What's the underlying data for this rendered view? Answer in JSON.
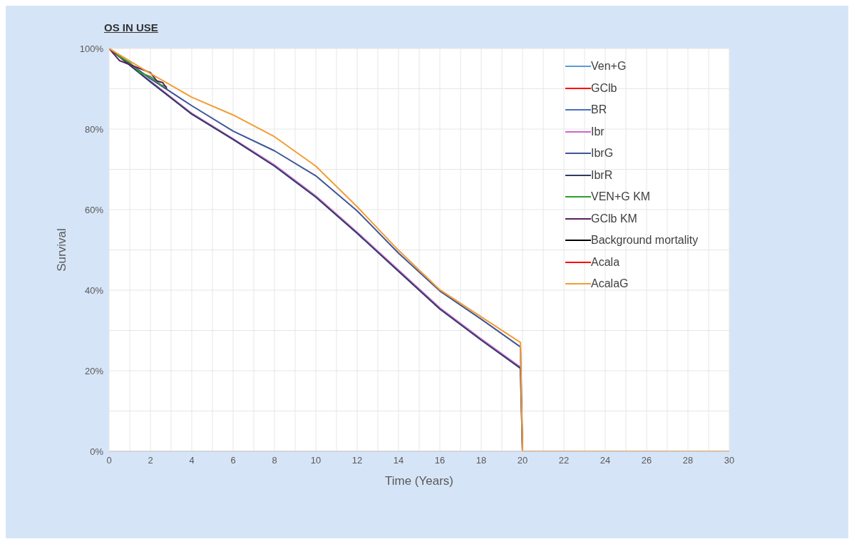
{
  "chart_data": {
    "type": "line",
    "title": "OS IN USE",
    "xlabel": "Time (Years)",
    "ylabel": "Survival",
    "xlim": [
      0,
      30
    ],
    "xticks": [
      0,
      {
        "value": 1,
        "label": null
      },
      2,
      {
        "value": 3,
        "label": null
      },
      4,
      {
        "value": 5,
        "label": null
      },
      6,
      {
        "value": 7,
        "label": null
      },
      8,
      {
        "value": 9,
        "label": null
      },
      10,
      {
        "value": 11,
        "label": null
      },
      12,
      {
        "value": 13,
        "label": null
      },
      14,
      {
        "value": 15,
        "label": null
      },
      16,
      {
        "value": 17,
        "label": null
      },
      18,
      {
        "value": 19,
        "label": null
      },
      20,
      {
        "value": 21,
        "label": null
      },
      22,
      {
        "value": 23,
        "label": null
      },
      24,
      {
        "value": 25,
        "label": null
      },
      26,
      {
        "value": 27,
        "label": null
      },
      28,
      {
        "value": 29,
        "label": null
      },
      30
    ],
    "ylim": [
      0,
      100
    ],
    "yticks": [
      {
        "value": 0,
        "label": "0%"
      },
      {
        "value": 10,
        "label": null
      },
      {
        "value": 20,
        "label": "20%"
      },
      {
        "value": 30,
        "label": null
      },
      {
        "value": 40,
        "label": "40%"
      },
      {
        "value": 50,
        "label": null
      },
      {
        "value": 60,
        "label": "60%"
      },
      {
        "value": 70,
        "label": null
      },
      {
        "value": 80,
        "label": "80%"
      },
      {
        "value": 90,
        "label": null
      },
      {
        "value": 100,
        "label": "100%"
      }
    ],
    "grid": true,
    "legend": "top right",
    "marker": "none",
    "line_style": "solid",
    "series": [
      {
        "name": "Ven+G",
        "color": "#5b9bd5"
      },
      {
        "name": "GClb",
        "color": "#ff0000"
      },
      {
        "name": "BR",
        "color": "#4472c4"
      },
      {
        "name": "Ibr",
        "color": "#cc66cc",
        "x": [
          0,
          2,
          4,
          6,
          8,
          10,
          12,
          14,
          16,
          18,
          19.9,
          20,
          30
        ],
        "values": [
          100,
          91.9,
          83.9,
          77.6,
          71.1,
          63.4,
          54.4,
          45,
          35.6,
          27.9,
          20.9,
          0,
          0
        ]
      },
      {
        "name": "IbrG",
        "color": "#3f5597",
        "x": [
          0,
          2,
          4,
          6,
          8,
          10,
          12,
          14,
          16,
          18,
          19.9,
          20,
          30
        ],
        "values": [
          100,
          92.5,
          85.8,
          79.5,
          74.6,
          68.4,
          59.7,
          49.2,
          39.8,
          32.8,
          25.9,
          0,
          0
        ]
      },
      {
        "name": "IbrR",
        "color": "#2e3b66",
        "x": [
          0,
          2,
          4,
          6,
          8,
          10,
          12,
          14,
          16,
          18,
          19.9,
          20,
          30
        ],
        "values": [
          100,
          91.7,
          83.7,
          77.4,
          70.8,
          63.1,
          54.1,
          44.7,
          35.3,
          27.6,
          20.6,
          0,
          0
        ]
      },
      {
        "name": "VEN+G KM",
        "color": "#2ca02c",
        "x": [
          0,
          0.3,
          0.5,
          1,
          1.5,
          2,
          2.5,
          2.8
        ],
        "values": [
          100,
          99,
          98,
          96.5,
          94,
          93,
          91,
          90.5
        ]
      },
      {
        "name": "GClb KM",
        "color": "#5b1f5e",
        "x": [
          0,
          0.5,
          1,
          1.5,
          2,
          2.3,
          2.6,
          2.8
        ],
        "values": [
          100,
          97,
          96,
          95,
          94,
          92,
          91.5,
          90
        ]
      },
      {
        "name": "Background mortality",
        "color": "#000000"
      },
      {
        "name": "Acala",
        "color": "#ff0000"
      },
      {
        "name": "AcalaG",
        "color": "#f39c34",
        "x": [
          0,
          2,
          4,
          6,
          8,
          10,
          12,
          14,
          16,
          18,
          19.9,
          20,
          30
        ],
        "values": [
          100,
          93.8,
          87.9,
          83.5,
          78.1,
          70.8,
          60.7,
          49.9,
          40.1,
          33.4,
          27,
          0,
          0
        ]
      }
    ]
  }
}
